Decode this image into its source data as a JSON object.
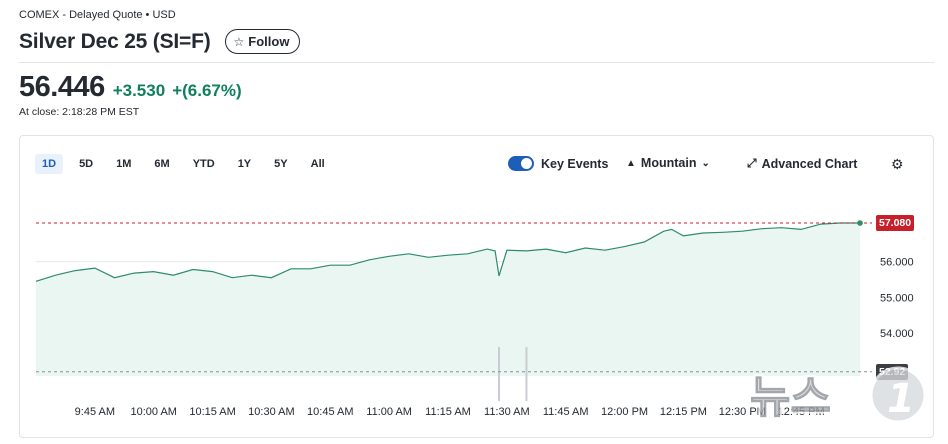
{
  "header": {
    "exchange_info": "COMEX - Delayed Quote • USD",
    "title": "Silver Dec 25 (SI=F)",
    "follow_label": "Follow",
    "price": "56.446",
    "change": "+3.530",
    "change_pct": "+(6.67%)",
    "close_time": "At close: 2:18:28 PM EST"
  },
  "chart_controls": {
    "ranges": [
      "1D",
      "5D",
      "1M",
      "6M",
      "YTD",
      "1Y",
      "5Y",
      "All"
    ],
    "active_range": "1D",
    "key_events_label": "Key Events",
    "key_events_on": true,
    "chart_type_label": "Mountain",
    "advanced_label": "Advanced Chart"
  },
  "watermark_text": "뉴스1",
  "colors": {
    "up": "#0f7f5c",
    "line": "#2e8b6c",
    "fill": "#eaf6f1",
    "last_price_tag": "#c7202a",
    "prev_close_tag": "#3b3f44",
    "accent": "#1d5fb8"
  },
  "chart_data": {
    "type": "area",
    "x_ticks": [
      "9:45 AM",
      "10:00 AM",
      "10:15 AM",
      "10:30 AM",
      "10:45 AM",
      "11:00 AM",
      "11:15 AM",
      "11:30 AM",
      "11:45 AM",
      "12:00 PM",
      "12:15 PM",
      "12:30 PM",
      "12:45 PM"
    ],
    "y_ticks": [
      "56.000",
      "55.000",
      "54.000"
    ],
    "ylim": [
      52.8,
      57.5
    ],
    "last_price_label": "57.080",
    "last_price": 57.08,
    "prev_close_label": "52.92",
    "prev_close": 52.92,
    "x": [
      "9:30 AM",
      "9:35 AM",
      "9:40 AM",
      "9:45 AM",
      "9:50 AM",
      "9:55 AM",
      "10:00 AM",
      "10:05 AM",
      "10:10 AM",
      "10:15 AM",
      "10:20 AM",
      "10:25 AM",
      "10:30 AM",
      "10:35 AM",
      "10:40 AM",
      "10:45 AM",
      "10:50 AM",
      "10:55 AM",
      "11:00 AM",
      "11:05 AM",
      "11:10 AM",
      "11:15 AM",
      "11:20 AM",
      "11:25 AM",
      "11:27 AM",
      "11:28 AM",
      "11:30 AM",
      "11:35 AM",
      "11:40 AM",
      "11:45 AM",
      "11:50 AM",
      "11:55 AM",
      "12:00 PM",
      "12:05 PM",
      "12:10 PM",
      "12:12 PM",
      "12:15 PM",
      "12:20 PM",
      "12:25 PM",
      "12:30 PM",
      "12:35 PM",
      "12:40 PM",
      "12:45 PM",
      "12:50 PM",
      "12:55 PM",
      "1:00 PM"
    ],
    "values": [
      55.45,
      55.62,
      55.75,
      55.82,
      55.55,
      55.68,
      55.72,
      55.62,
      55.78,
      55.72,
      55.55,
      55.62,
      55.55,
      55.8,
      55.8,
      55.9,
      55.9,
      56.05,
      56.15,
      56.22,
      56.12,
      56.18,
      56.22,
      56.35,
      56.3,
      55.6,
      56.32,
      56.3,
      56.35,
      56.25,
      56.38,
      56.32,
      56.42,
      56.55,
      56.85,
      56.9,
      56.72,
      56.8,
      56.82,
      56.85,
      56.92,
      56.95,
      56.9,
      57.05,
      57.08,
      57.08
    ]
  }
}
